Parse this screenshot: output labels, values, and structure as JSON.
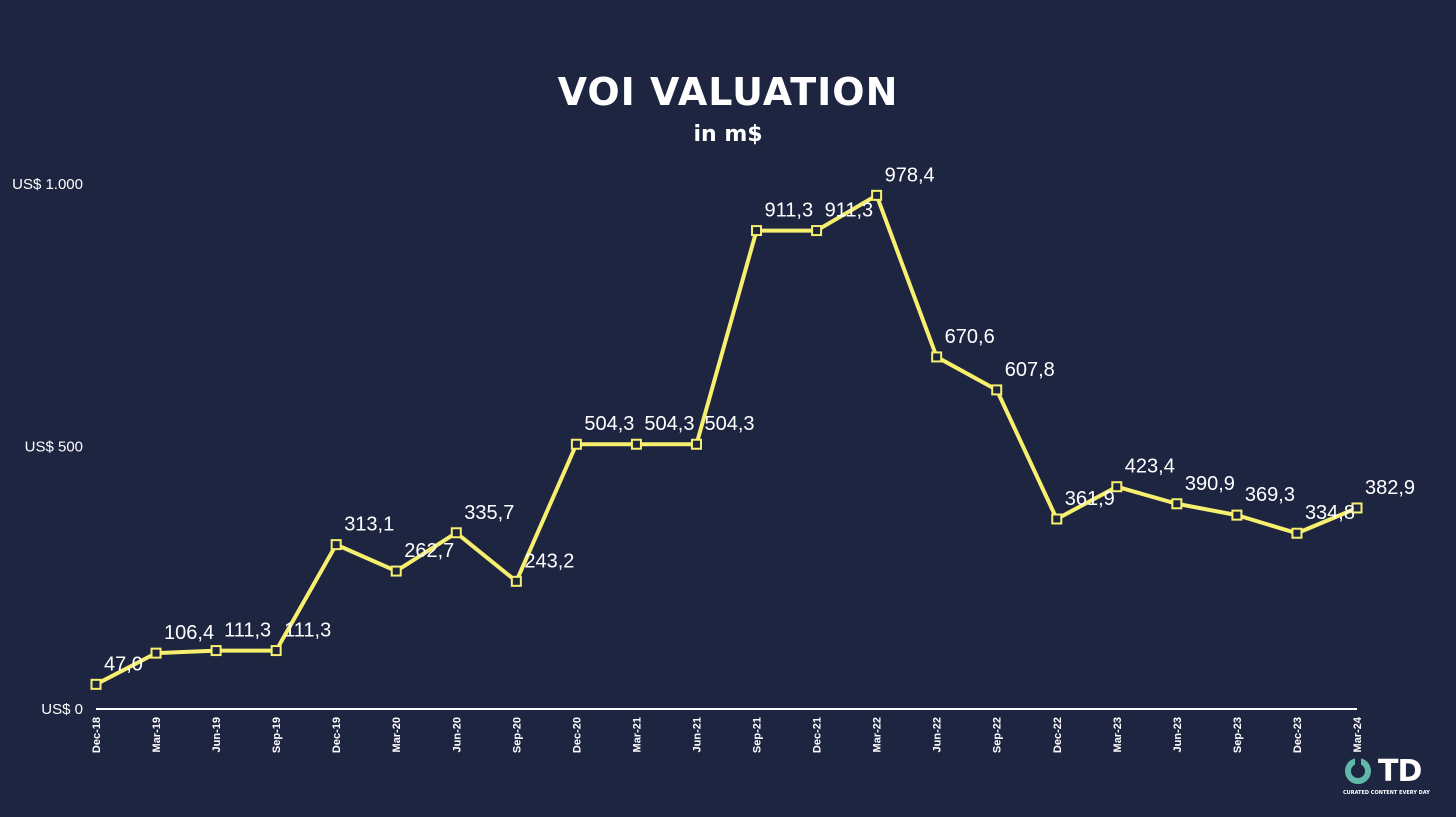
{
  "chart_data": {
    "type": "line",
    "title": "VOI VALUATION",
    "subtitle": "in m$",
    "categories": [
      "Dec-18",
      "Mar-19",
      "Jun-19",
      "Sep-19",
      "Dec-19",
      "Mar-20",
      "Jun-20",
      "Sep-20",
      "Dec-20",
      "Mar-21",
      "Jun-21",
      "Sep-21",
      "Dec-21",
      "Mar-22",
      "Jun-22",
      "Sep-22",
      "Dec-22",
      "Mar-23",
      "Jun-23",
      "Sep-23",
      "Dec-23",
      "Mar-24"
    ],
    "values": [
      47.0,
      106.4,
      111.3,
      111.3,
      313.1,
      262.7,
      335.7,
      243.2,
      504.3,
      504.3,
      504.3,
      911.3,
      911.3,
      978.4,
      670.6,
      607.8,
      361.9,
      423.4,
      390.9,
      369.3,
      334.8,
      382.9
    ],
    "data_labels": [
      "47,0",
      "106,4",
      "111,3",
      "111,3",
      "313,1",
      "262,7",
      "335,7",
      "243,2",
      "504,3",
      "504,3",
      "504,3",
      "911,3",
      "911,3",
      "978,4",
      "670,6",
      "607,8",
      "361,9",
      "423,4",
      "390,9",
      "369,3",
      "334,8",
      "382,9"
    ],
    "y_ticks": [
      {
        "value": 0,
        "label": "US$ 0"
      },
      {
        "value": 500,
        "label": "US$ 500"
      },
      {
        "value": 1000,
        "label": "US$ 1.000"
      }
    ],
    "ylim": [
      0,
      1000
    ],
    "grid": false,
    "line_color": "#f7f06e",
    "background_color": "#1e2541"
  },
  "logo": {
    "text": "TD",
    "tagline": "CURATED CONTENT EVERY DAY"
  }
}
